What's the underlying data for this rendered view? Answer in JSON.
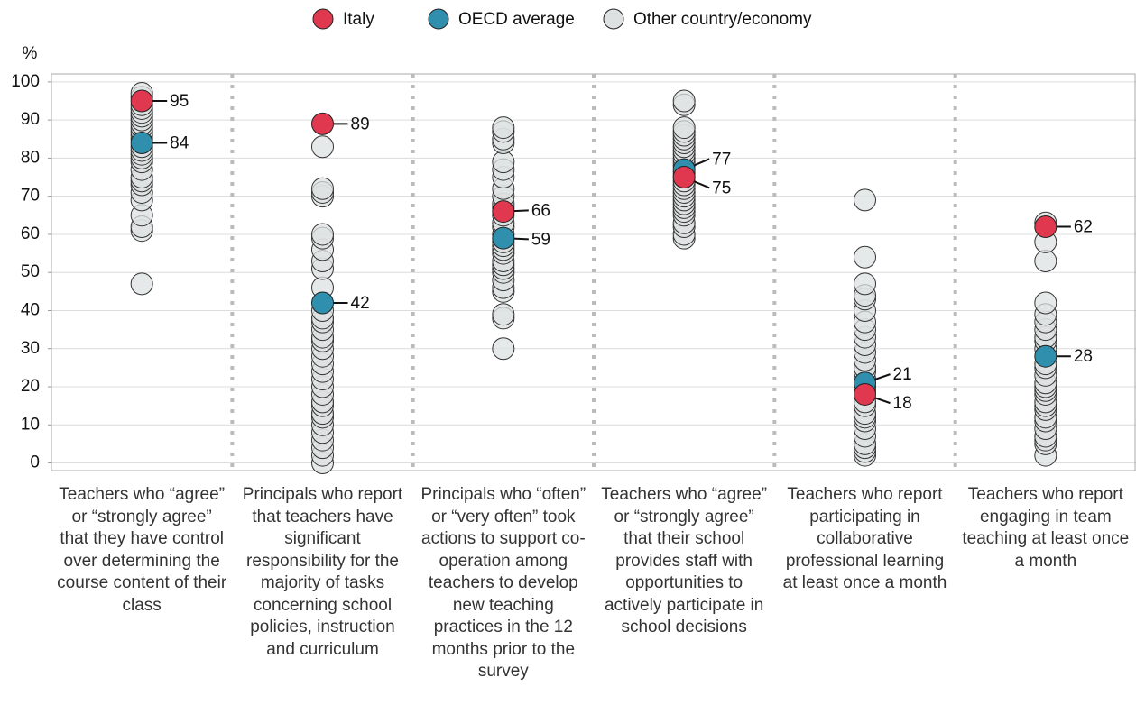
{
  "chart_data": {
    "type": "strip",
    "y_label": "%",
    "categories": [
      "Teachers who “agree” or “strongly agree” that they have control over determining the course content of their class",
      "Principals who report that teachers have significant responsibility for the majority of tasks concerning school policies, instruction and curriculum",
      "Principals who “often” or “very often” took actions to support co-operation among teachers to develop new teaching practices in the 12 months prior to the survey",
      "Teachers who “agree” or “strongly agree” that their school provides staff with opportunities to actively participate in school decisions",
      "Teachers who report participating in collaborative professional learning at least once a month",
      "Teachers who report engaging in team teaching at least once a month"
    ],
    "series": [
      {
        "name": "Italy",
        "color": "#e0394f",
        "values": [
          95,
          89,
          66,
          75,
          18,
          62
        ]
      },
      {
        "name": "OECD average",
        "color": "#2f8fad",
        "values": [
          84,
          42,
          59,
          77,
          21,
          28
        ]
      },
      {
        "name": "Other country/economy",
        "color": "#dde1e1",
        "values": [
          [
            47,
            61,
            62,
            65,
            69,
            71,
            73,
            74,
            75,
            77,
            79,
            80,
            81,
            82,
            83,
            85,
            86,
            87,
            88,
            89,
            90,
            91,
            92,
            93,
            94,
            96,
            97
          ],
          [
            0,
            2,
            4,
            6,
            8,
            10,
            12,
            13,
            15,
            16,
            18,
            20,
            22,
            24,
            26,
            28,
            30,
            32,
            33,
            35,
            37,
            38,
            40,
            46,
            51,
            53,
            56,
            59,
            60,
            70,
            71,
            72,
            83
          ],
          [
            30,
            38,
            39,
            45,
            46,
            48,
            50,
            51,
            52,
            53,
            55,
            56,
            57,
            58,
            60,
            62,
            63,
            65,
            67,
            68,
            70,
            72,
            75,
            77,
            79,
            84,
            85,
            87,
            88
          ],
          [
            59,
            60,
            62,
            63,
            65,
            66,
            67,
            68,
            69,
            70,
            71,
            72,
            73,
            74,
            75,
            76,
            78,
            79,
            80,
            81,
            82,
            83,
            84,
            85,
            86,
            87,
            88,
            94,
            95
          ],
          [
            2,
            3,
            4,
            5,
            7,
            9,
            11,
            12,
            13,
            15,
            16,
            19,
            20,
            22,
            24,
            25,
            27,
            29,
            31,
            33,
            35,
            37,
            40,
            43,
            44,
            47,
            54,
            69
          ],
          [
            2,
            5,
            6,
            7,
            9,
            11,
            12,
            14,
            15,
            16,
            18,
            19,
            20,
            21,
            23,
            25,
            26,
            30,
            32,
            33,
            35,
            37,
            39,
            42,
            53,
            58,
            63
          ]
        ]
      }
    ],
    "ylim": [
      -2,
      102.1
    ],
    "yticks": [
      0,
      10,
      20,
      30,
      40,
      50,
      60,
      70,
      80,
      90,
      100
    ],
    "grid": true,
    "legend": "top"
  }
}
